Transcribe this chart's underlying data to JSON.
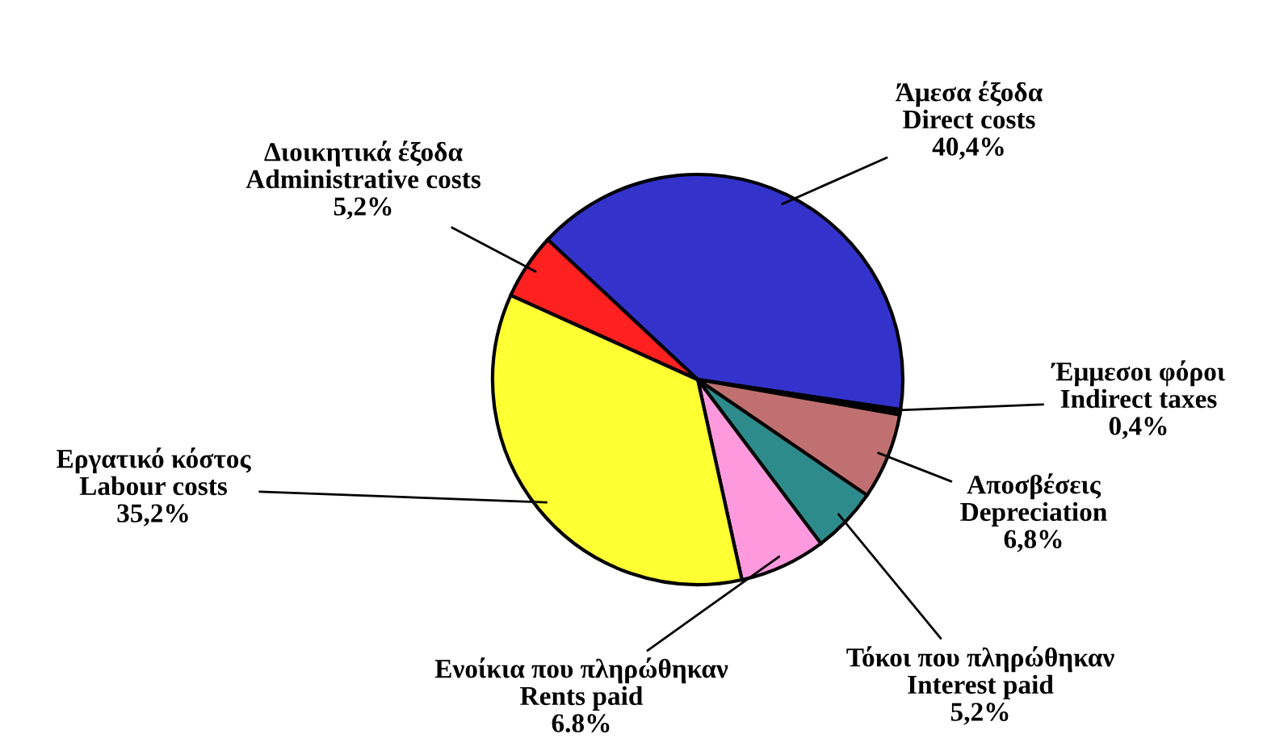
{
  "chart_data": {
    "type": "pie",
    "categories": [
      "Άμεσα έξοδα\nDirect costs",
      "Έμμεσοι φόροι\nIndirect taxes",
      "Αποσβέσεις\nDepreciation",
      "Τόκοι που πληρώθηκαν\nInterest paid",
      "Ενοίκια που πληρώθηκαν\nRents paid",
      "Εργατικό κόστος\nLabour costs",
      "Διοικητικά έξοδα\nAdministrative costs"
    ],
    "values": [
      40.4,
      0.4,
      6.8,
      5.2,
      6.8,
      35.2,
      5.2
    ],
    "value_labels": [
      "40,4%",
      "0,4%",
      "6,8%",
      "5,2%",
      "6.8%",
      "35,2%",
      "5,2%"
    ],
    "colors": [
      "#3333cc",
      "#000000",
      "#c07070",
      "#2e8b8b",
      "#ff99dd",
      "#ffff33",
      "#ff2020"
    ]
  }
}
